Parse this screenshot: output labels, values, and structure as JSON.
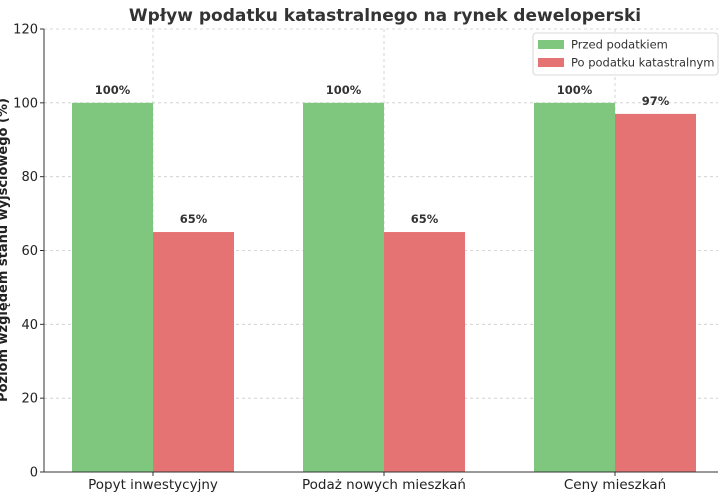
{
  "chart_data": {
    "type": "bar",
    "title": "Wpływ podatku katastralnego na rynek deweloperski",
    "ylabel": "Poziom względem stanu wyjściowego (%)",
    "xlabel": "",
    "categories": [
      "Popyt inwestycyjny",
      "Podaż nowych mieszkań",
      "Ceny mieszkań"
    ],
    "series": [
      {
        "name": "Przed podatkiem",
        "values": [
          100,
          100,
          100
        ],
        "color": "#7fc77f",
        "labels": [
          "100%",
          "100%",
          "100%"
        ]
      },
      {
        "name": "Po podatku katastralnym",
        "values": [
          65,
          65,
          97
        ],
        "color": "#e57373",
        "labels": [
          "65%",
          "65%",
          "97%"
        ]
      }
    ],
    "ylim": [
      0,
      120
    ],
    "yticks": [
      "0",
      "20",
      "40",
      "60",
      "80",
      "100",
      "120"
    ],
    "ytick_values": [
      0,
      20,
      40,
      60,
      80,
      100,
      120
    ],
    "grid": true,
    "legend_position": "top-right"
  }
}
